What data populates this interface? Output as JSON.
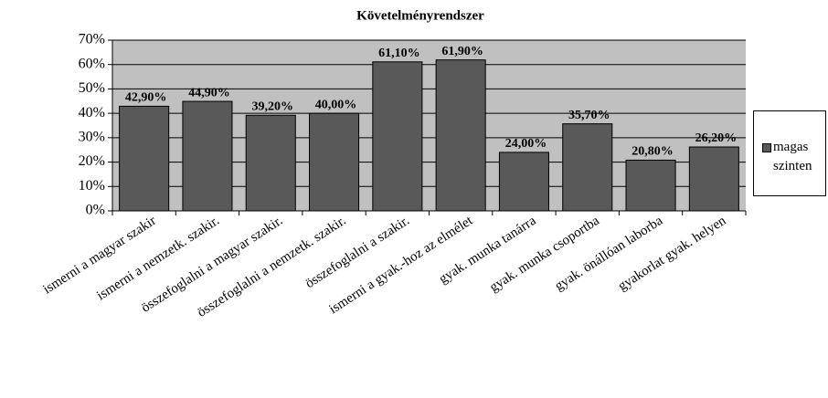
{
  "chart_data": {
    "type": "bar",
    "title": "Követelményrendszer",
    "categories": [
      "ismerni a magyar szakir",
      "ismerni a nemzetk. szakir.",
      "összefoglalni a magyar szakir.",
      "összefoglalni a nemzetk. szakir.",
      "összefoglalni a szakir.",
      "ismerni a gyak.-hoz az elmélet",
      "gyak. munka tanárra",
      "gyak. munka csoportba",
      "gyak. önállóan laborba",
      "gyakorlat gyak. helyen"
    ],
    "series": [
      {
        "name": "magas szinten",
        "color": "#595959",
        "values": [
          42.9,
          44.9,
          39.2,
          40,
          61.1,
          61.9,
          24,
          35.7,
          20.8,
          26.2
        ],
        "value_labels": [
          "42,90%",
          "44,90%",
          "39,20%",
          "40,00%",
          "61,10%",
          "61,90%",
          "24,00%",
          "35,70%",
          "20,80%",
          "26,20%"
        ]
      }
    ],
    "ylim": [
      0,
      70
    ],
    "yticks": [
      {
        "value": 0,
        "label": "0%"
      },
      {
        "value": 10,
        "label": "10%"
      },
      {
        "value": 20,
        "label": "20%"
      },
      {
        "value": 30,
        "label": "30%"
      },
      {
        "value": 40,
        "label": "40%"
      },
      {
        "value": 50,
        "label": "50%"
      },
      {
        "value": 60,
        "label": "60%"
      },
      {
        "value": 70,
        "label": "70%"
      }
    ],
    "grid": true,
    "plot_background": "#c0c0c0",
    "legend": "right"
  }
}
